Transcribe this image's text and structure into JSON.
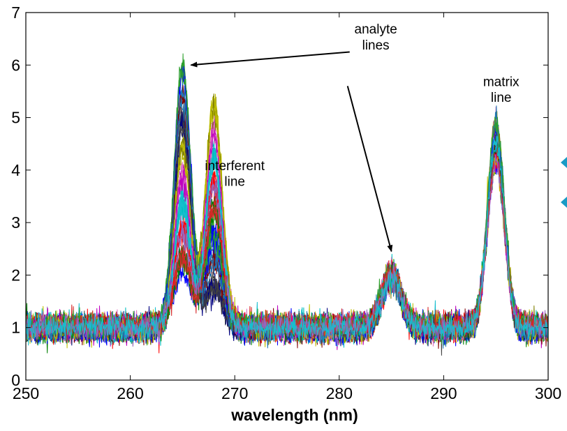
{
  "chart_data": {
    "type": "line",
    "title": "",
    "xlabel": "wavelength (nm)",
    "ylabel": "",
    "xlim": [
      250,
      300
    ],
    "ylim": [
      0,
      7
    ],
    "x_ticks": [
      250,
      260,
      270,
      280,
      290,
      300
    ],
    "y_ticks": [
      0,
      1,
      2,
      3,
      4,
      5,
      6,
      7
    ],
    "x_tick_labels": [
      "250",
      "260",
      "270",
      "280",
      "290",
      "300"
    ],
    "y_tick_labels": [
      "0",
      "1",
      "2",
      "3",
      "4",
      "5",
      "6",
      "7"
    ],
    "grid": false,
    "legend": "none",
    "baseline": 1.0,
    "noise_amplitude": 0.2,
    "series_count": 60,
    "peaks": [
      {
        "center": 265.0,
        "width": 0.8,
        "height_min": 1.0,
        "height_max": 5.1
      },
      {
        "center": 268.0,
        "width": 0.8,
        "height_min": 0.5,
        "height_max": 4.4
      },
      {
        "center": 285.0,
        "width": 0.9,
        "height_min": 0.9,
        "height_max": 1.1
      },
      {
        "center": 295.0,
        "width": 0.8,
        "height_min": 3.0,
        "height_max": 4.0
      }
    ],
    "annotations": [
      {
        "lines": [
          "analyte",
          "lines"
        ],
        "x": 283.5,
        "y": 6.6
      },
      {
        "lines": [
          "interferent",
          "line"
        ],
        "x": 270.0,
        "y": 4.0
      },
      {
        "lines": [
          "matrix",
          "line"
        ],
        "x": 295.5,
        "y": 5.6
      }
    ],
    "arrows": [
      {
        "from": [
          281.0,
          6.25
        ],
        "to": [
          265.8,
          6.0
        ]
      },
      {
        "from": [
          280.8,
          5.6
        ],
        "to": [
          285.0,
          2.45
        ]
      }
    ],
    "palette": [
      "#0000ff",
      "#008000",
      "#ff0000",
      "#00bfbf",
      "#bf00bf",
      "#bfbf00",
      "#404040",
      "#1f77b4",
      "#2ca02c",
      "#d62728",
      "#9467bd",
      "#17becf",
      "#e377c2",
      "#7f7f00",
      "#000080",
      "#800000"
    ],
    "accent_shapes_color": "#1a9bc6"
  }
}
